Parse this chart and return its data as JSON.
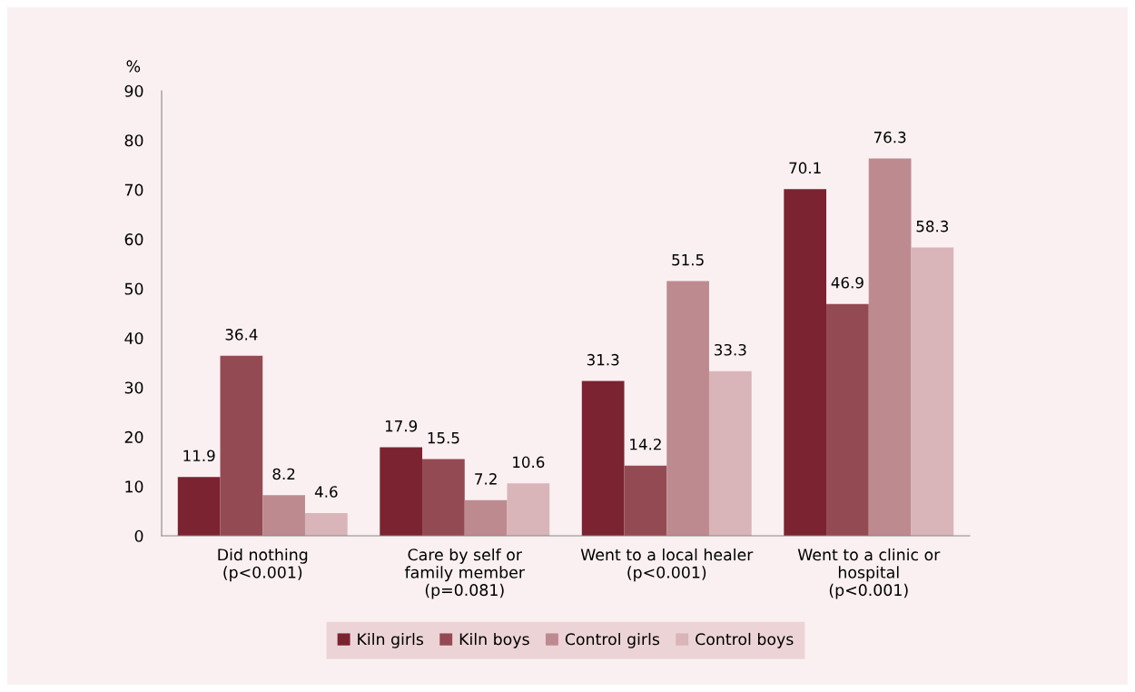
{
  "chart_data": {
    "type": "bar",
    "ylabel": "%",
    "categories": [
      "Did nothing\n(p<0.001)",
      "Care by self or\nfamily member\n(p=0.081)",
      "Went to a local healer\n(p<0.001)",
      "Went to a clinic or\nhospital\n(p<0.001)"
    ],
    "series": [
      {
        "name": "Kiln girls",
        "color": "#7b2330",
        "values": [
          11.9,
          17.9,
          31.3,
          70.1
        ]
      },
      {
        "name": "Kiln boys",
        "color": "#944a53",
        "values": [
          36.4,
          15.5,
          14.2,
          46.9
        ]
      },
      {
        "name": "Control girls",
        "color": "#bd8a8f",
        "values": [
          8.2,
          7.2,
          51.5,
          76.3
        ]
      },
      {
        "name": "Control boys",
        "color": "#d9b4b8",
        "values": [
          4.6,
          10.6,
          33.3,
          58.3
        ]
      }
    ],
    "ylim": [
      0,
      90
    ],
    "yticks": [
      0,
      10,
      20,
      30,
      40,
      50,
      60,
      70,
      80,
      90
    ],
    "data_labels": true,
    "grid": false,
    "legend": "bottom"
  }
}
